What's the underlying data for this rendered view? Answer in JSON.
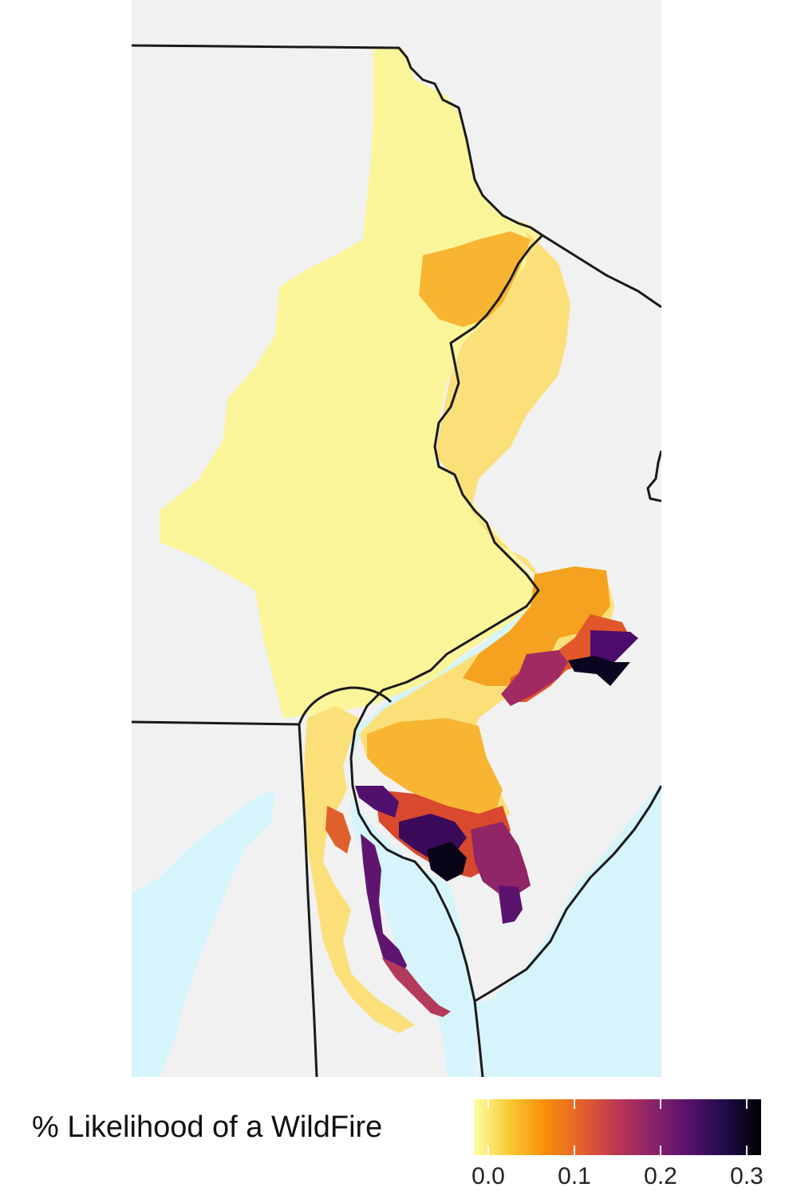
{
  "legend": {
    "title": "% Likelihood of a WildFire",
    "min": 0.0,
    "max": 0.3,
    "ticks": [
      {
        "value": 0.0,
        "label": "0.0"
      },
      {
        "value": 0.1,
        "label": "0.1"
      },
      {
        "value": 0.2,
        "label": "0.2"
      },
      {
        "value": 0.3,
        "label": "0.3"
      }
    ],
    "colormap": [
      "#fcffa4",
      "#f8c932",
      "#f98e09",
      "#e4602c",
      "#bc3754",
      "#8a226a",
      "#57106e",
      "#1f0c48",
      "#000004"
    ]
  },
  "colors": {
    "land": "#f1f1f1",
    "water": "#d6f4fc",
    "border": "#1a1a1a"
  }
}
